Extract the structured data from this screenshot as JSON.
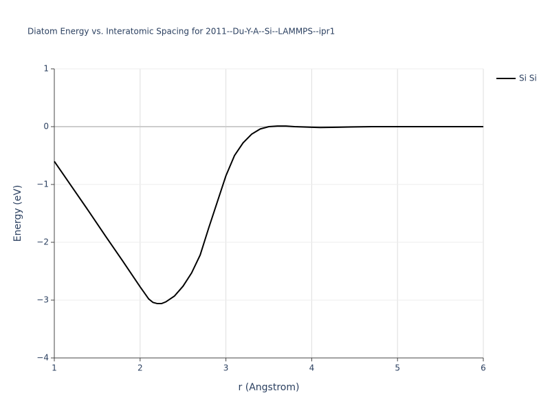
{
  "chart_data": {
    "type": "line",
    "title": "Diatom Energy vs. Interatomic Spacing for 2011--Du-Y-A--Si--LAMMPS--ipr1",
    "x_label": "r (Angstrom)",
    "y_label": "Energy (eV)",
    "x": [
      1.0,
      1.2,
      1.4,
      1.6,
      1.8,
      2.0,
      2.1,
      2.15,
      2.2,
      2.25,
      2.3,
      2.4,
      2.5,
      2.6,
      2.7,
      2.8,
      2.9,
      3.0,
      3.1,
      3.2,
      3.3,
      3.4,
      3.5,
      3.6,
      3.7,
      3.8,
      4.0,
      4.1,
      4.3,
      4.7,
      5.0,
      6.0
    ],
    "series": [
      {
        "name": "Si Si",
        "color": "#000000",
        "values": [
          -0.6,
          -1.03,
          -1.46,
          -1.9,
          -2.33,
          -2.77,
          -2.98,
          -3.04,
          -3.06,
          -3.06,
          -3.03,
          -2.93,
          -2.76,
          -2.53,
          -2.22,
          -1.75,
          -1.3,
          -0.85,
          -0.5,
          -0.28,
          -0.13,
          -0.04,
          0.0,
          0.01,
          0.01,
          0.0,
          -0.01,
          -0.015,
          -0.01,
          0,
          0,
          0
        ]
      }
    ],
    "xlim": [
      1,
      6
    ],
    "xticks": [
      1,
      2,
      3,
      4,
      5,
      6
    ],
    "ylim": [
      -4,
      1
    ],
    "yticks": [
      {
        "value": -4,
        "label": "−4"
      },
      {
        "value": -3,
        "label": "−3"
      },
      {
        "value": -2,
        "label": "−2"
      },
      {
        "value": -1,
        "label": "−1"
      },
      0,
      1
    ],
    "grid": true,
    "zeroline": true,
    "legend": "right"
  }
}
